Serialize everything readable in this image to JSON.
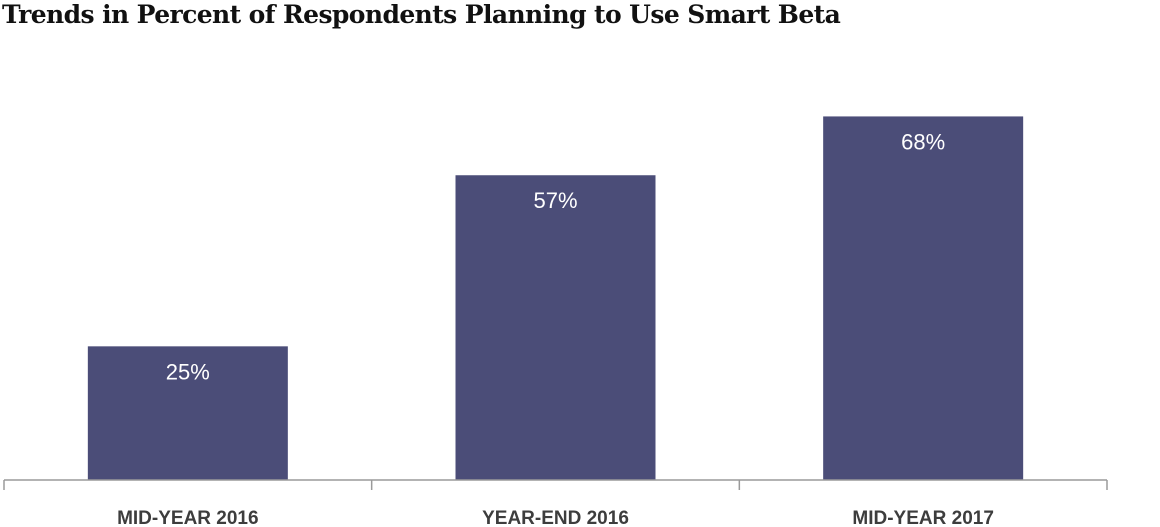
{
  "chart_data": {
    "type": "bar",
    "title": "Trends in Percent of Respondents Planning to Use Smart Beta",
    "categories": [
      "MID-YEAR 2016",
      "YEAR-END 2016",
      "MID-YEAR 2017"
    ],
    "values": [
      25,
      57,
      68
    ],
    "value_labels": [
      "25%",
      "57%",
      "68%"
    ],
    "xlabel": "",
    "ylabel": "",
    "ylim": [
      0,
      75
    ],
    "grid": false,
    "legend": "none",
    "bar_color": "#4b4d78"
  }
}
